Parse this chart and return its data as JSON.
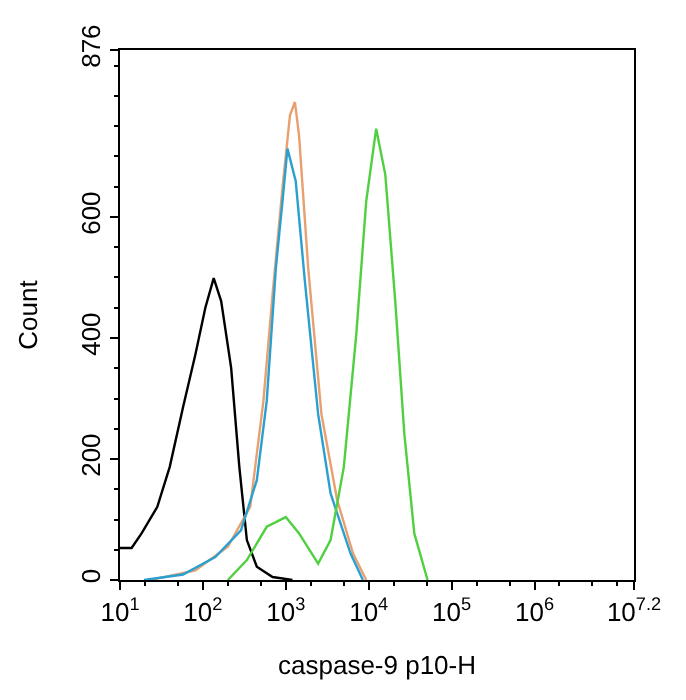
{
  "chart_data": {
    "type": "line",
    "xlabel": "caspase-9 p10-H",
    "ylabel": "Count",
    "log": "x",
    "marker": "none",
    "line_style": "solid",
    "xlim": [
      10,
      15848932
    ],
    "ylim": [
      0,
      876
    ],
    "xticks": [
      {
        "value": 10,
        "label": "10$^{1}$"
      },
      {
        "value": 100,
        "label": "10$^{2}$"
      },
      {
        "value": 1000,
        "label": "10$^{3}$"
      },
      {
        "value": 10000,
        "label": "10$^{4}$"
      },
      {
        "value": 100000,
        "label": "10$^{5}$"
      },
      {
        "value": 1000000,
        "label": "10$^{6}$"
      },
      {
        "value": 15848932,
        "label": "10$^{7.2}$"
      }
    ],
    "yticks": [
      0,
      200,
      400,
      600,
      876
    ],
    "series": [
      {
        "color": "#000000",
        "x": [
          10,
          13.8,
          18.2,
          28.2,
          39.8,
          57.5,
          81.3,
          107,
          135,
          166,
          219,
          275,
          339,
          447,
          692,
          1202
        ],
        "values": [
          53,
          53,
          77,
          121,
          187,
          285,
          373,
          450,
          499,
          461,
          351,
          187,
          66,
          22,
          5,
          0
        ]
      },
      {
        "color": "#e8a070",
        "x": [
          23.4,
          81.3,
          200,
          372,
          537,
          692,
          912,
          1122,
          1288,
          1445,
          1862,
          2692,
          4169,
          6457,
          9333
        ],
        "values": [
          0,
          16,
          55,
          121,
          296,
          472,
          648,
          768,
          790,
          735,
          516,
          274,
          132,
          44,
          0
        ]
      },
      {
        "color": "#2aa0d0",
        "x": [
          19.5,
          57.5,
          141,
          288,
          447,
          589,
          759,
          912,
          1047,
          1318,
          1698,
          2455,
          3467,
          6026,
          8511
        ],
        "values": [
          0,
          9,
          38,
          82,
          165,
          296,
          516,
          626,
          713,
          659,
          494,
          274,
          143,
          44,
          0
        ]
      },
      {
        "color": "#50d040",
        "x": [
          200,
          339,
          589,
          1000,
          1445,
          2455,
          3467,
          5012,
          7079,
          9333,
          12300,
          15850,
          20890,
          26920,
          35480,
          51290
        ],
        "values": [
          0,
          33,
          88,
          104,
          77,
          27,
          66,
          187,
          406,
          626,
          746,
          670,
          461,
          241,
          77,
          0
        ]
      }
    ]
  }
}
